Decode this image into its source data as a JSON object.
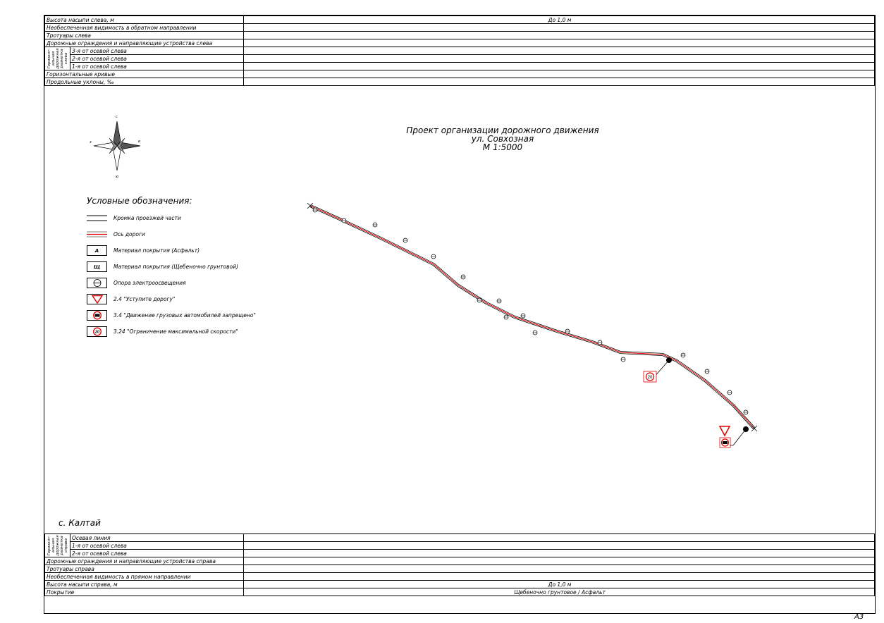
{
  "top_table": {
    "rows": [
      {
        "label": "Высота насыпи слева, м",
        "value": "До 1,0 м"
      },
      {
        "label": "Необеспеченная видимость в обратном направлении",
        "value": ""
      },
      {
        "label": "Тротуары слева",
        "value": ""
      },
      {
        "label": "Дорожные ограждения и направляющие устройства слева",
        "value": ""
      }
    ],
    "group_label": "Горизонт- альная дорожная разметка слева",
    "group_rows": [
      {
        "label": "3-я от осевой слева",
        "value": ""
      },
      {
        "label": "2-я от осевой слева",
        "value": ""
      },
      {
        "label": "1-я от осевой слева",
        "value": ""
      }
    ],
    "rows_after": [
      {
        "label": "Горизонтальные кривые",
        "value": ""
      },
      {
        "label": "Продольные уклоны, ‰",
        "value": ""
      }
    ]
  },
  "title": {
    "line1": "Проект организации дорожного движения",
    "line2": "ул. Совхозная",
    "line3": "М 1:5000"
  },
  "compass": {
    "north": "с",
    "south": "ю",
    "east": "в",
    "west": "з"
  },
  "legend": {
    "title": "Условные обозначения:",
    "items": [
      {
        "symbol": "",
        "label": "Кромка проезжей части"
      },
      {
        "symbol": "",
        "label": "Ось дороги"
      },
      {
        "symbol": "А",
        "label": "Материал покрытия (Асфальт)"
      },
      {
        "symbol": "Щ",
        "label": "Материал покрытия (Щебеночно грунтовой)"
      },
      {
        "symbol": "",
        "label": "Опора электроосвещения"
      },
      {
        "symbol": "",
        "label": "2.4 \"Уступите дорогу\""
      },
      {
        "symbol": "",
        "label": "3.4 \"Движение грузовых автомобилей запрещено\""
      },
      {
        "symbol": "20",
        "label": "3.24 \"Ограничение максимальной скорости\""
      }
    ]
  },
  "map": {
    "speed_sign": "20",
    "colors": {
      "axis": "#e00000",
      "edge": "#000000"
    },
    "road": [
      [
        440,
        292
      ],
      [
        480,
        310
      ],
      [
        540,
        338
      ],
      [
        615,
        375
      ],
      [
        650,
        405
      ],
      [
        690,
        430
      ],
      [
        730,
        450
      ],
      [
        790,
        470
      ],
      [
        840,
        485
      ],
      [
        880,
        500
      ],
      [
        940,
        503
      ],
      [
        960,
        512
      ],
      [
        1000,
        540
      ],
      [
        1040,
        575
      ],
      [
        1070,
        608
      ]
    ],
    "poles": [
      [
        447,
        298
      ],
      [
        488,
        313
      ],
      [
        532,
        319
      ],
      [
        575,
        341
      ],
      [
        615,
        364
      ],
      [
        657,
        393
      ],
      [
        680,
        426
      ],
      [
        708,
        427
      ],
      [
        718,
        450
      ],
      [
        742,
        448
      ],
      [
        759,
        472
      ],
      [
        805,
        470
      ],
      [
        851,
        486
      ],
      [
        884,
        510
      ],
      [
        969,
        504
      ],
      [
        1003,
        527
      ],
      [
        1035,
        557
      ],
      [
        1058,
        585
      ]
    ],
    "dots": [
      [
        949,
        511
      ],
      [
        1058,
        609
      ]
    ]
  },
  "village": "с. Калтай",
  "bottom_table": {
    "group_label": "Горизонт- альная дорожная разметка справа",
    "group_rows": [
      {
        "label": "Осевая линия",
        "value": ""
      },
      {
        "label": "1-я от осевой слева",
        "value": ""
      },
      {
        "label": "2-я от осевой слева",
        "value": ""
      }
    ],
    "rows": [
      {
        "label": "Дорожные ограждения и направляющие устройства справа",
        "value": ""
      },
      {
        "label": "Тротуары справа",
        "value": ""
      },
      {
        "label": "Необеспеченная видимость в прямом направлении",
        "value": ""
      },
      {
        "label": "Высота насыпи справа, м",
        "value": "До 1,0 м"
      },
      {
        "label": "Покрытие",
        "value": "Щебеночно грунтовое / Асфальт"
      }
    ]
  },
  "sheet_format": "А3"
}
